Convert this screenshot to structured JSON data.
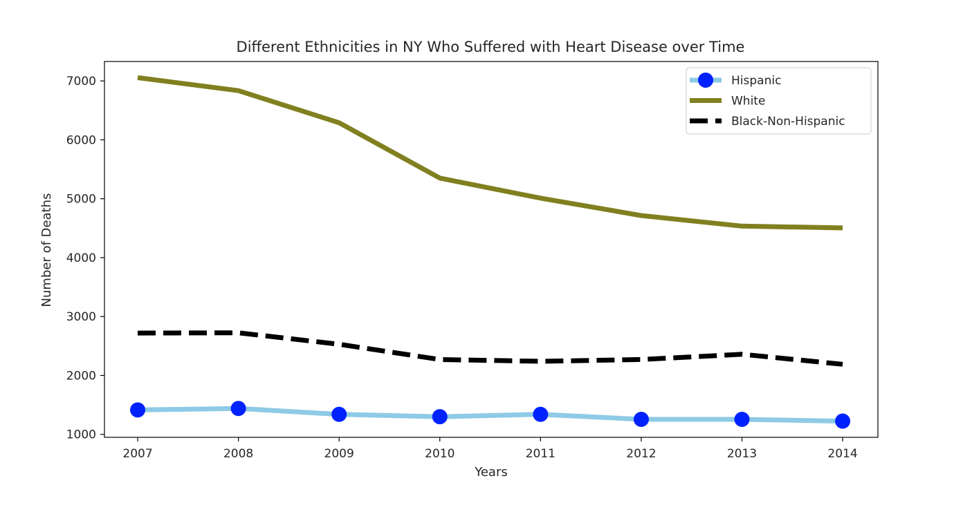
{
  "chart_data": {
    "type": "line",
    "title": "Different Ethnicities in NY Who Suffered with Heart Disease over Time",
    "xlabel": "Years",
    "ylabel": "Number of Deaths",
    "x": [
      2007,
      2008,
      2009,
      2010,
      2011,
      2012,
      2013,
      2014
    ],
    "xlim": [
      2006.67,
      2014.35
    ],
    "ylim": [
      950,
      7330
    ],
    "yticks": [
      1000,
      2000,
      3000,
      4000,
      5000,
      6000,
      7000
    ],
    "grid": false,
    "legend_position": "top-right",
    "series": [
      {
        "name": "Hispanic",
        "values": [
          1415,
          1440,
          1340,
          1300,
          1340,
          1255,
          1255,
          1225
        ],
        "line_color": "#8ecae6",
        "marker_color": "#0022ff",
        "style": "solid-markers"
      },
      {
        "name": "White",
        "values": [
          7055,
          6835,
          6290,
          5350,
          5010,
          4715,
          4535,
          4505
        ],
        "line_color": "#808020",
        "style": "solid"
      },
      {
        "name": "Black-Non-Hispanic",
        "values": [
          2720,
          2725,
          2530,
          2270,
          2240,
          2270,
          2360,
          2190
        ],
        "line_color": "#000000",
        "style": "dashed"
      }
    ]
  }
}
